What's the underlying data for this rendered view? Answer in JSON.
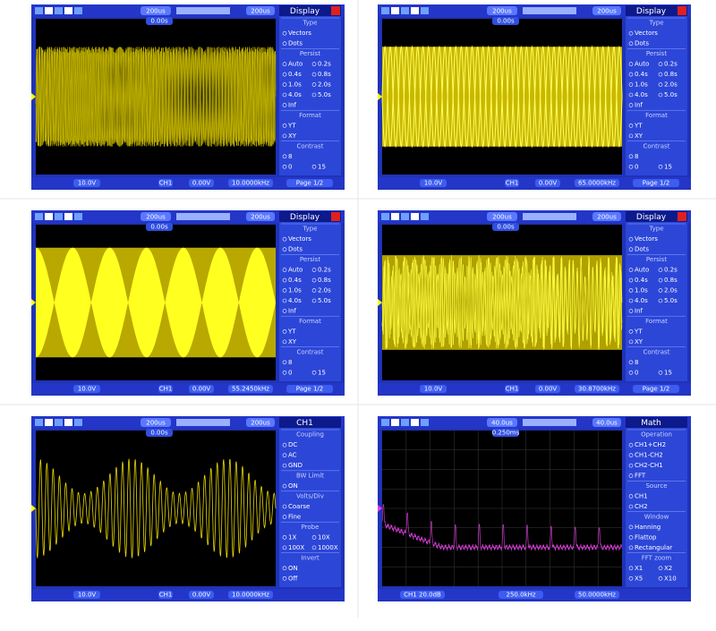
{
  "panels": [
    {
      "top": [
        "200us",
        "0.00s",
        "200us"
      ],
      "menu": {
        "title": "Display",
        "sections": [
          {
            "heading": "Type",
            "options": [
              [
                "Vectors"
              ],
              [
                "Dots"
              ]
            ]
          },
          {
            "heading": "Persist",
            "options": [
              [
                "Auto",
                "0.2s"
              ],
              [
                "0.4s",
                "0.8s"
              ],
              [
                "1.0s",
                "2.0s"
              ],
              [
                "4.0s",
                "5.0s"
              ],
              [
                "Inf"
              ]
            ]
          },
          {
            "heading": "Format",
            "options": [
              [
                "YT"
              ],
              [
                "XY"
              ]
            ]
          },
          {
            "heading": "Contrast",
            "options": [
              [
                "8"
              ],
              [
                "0",
                "15"
              ]
            ]
          }
        ],
        "page": "Page 1/2"
      },
      "bottom": [
        "10.0V",
        "CH1",
        "0.00V",
        "10.0000kHz"
      ]
    },
    {
      "top": [
        "200us",
        "0.00s",
        "200us"
      ],
      "menu": {
        "title": "Display",
        "sections": [
          {
            "heading": "Type",
            "options": [
              [
                "Vectors"
              ],
              [
                "Dots"
              ]
            ]
          },
          {
            "heading": "Persist",
            "options": [
              [
                "Auto",
                "0.2s"
              ],
              [
                "0.4s",
                "0.8s"
              ],
              [
                "1.0s",
                "2.0s"
              ],
              [
                "4.0s",
                "5.0s"
              ],
              [
                "Inf"
              ]
            ]
          },
          {
            "heading": "Format",
            "options": [
              [
                "YT"
              ],
              [
                "XY"
              ]
            ]
          },
          {
            "heading": "Contrast",
            "options": [
              [
                "8"
              ],
              [
                "0",
                "15"
              ]
            ]
          }
        ],
        "page": "Page 1/2"
      },
      "bottom": [
        "10.0V",
        "CH1",
        "0.00V",
        "65.0000kHz"
      ]
    },
    {
      "top": [
        "200us",
        "0.00s",
        "200us"
      ],
      "menu": {
        "title": "Display",
        "sections": [
          {
            "heading": "Type",
            "options": [
              [
                "Vectors"
              ],
              [
                "Dots"
              ]
            ]
          },
          {
            "heading": "Persist",
            "options": [
              [
                "Auto",
                "0.2s"
              ],
              [
                "0.4s",
                "0.8s"
              ],
              [
                "1.0s",
                "2.0s"
              ],
              [
                "4.0s",
                "5.0s"
              ],
              [
                "Inf"
              ]
            ]
          },
          {
            "heading": "Format",
            "options": [
              [
                "YT"
              ],
              [
                "XY"
              ]
            ]
          },
          {
            "heading": "Contrast",
            "options": [
              [
                "8"
              ],
              [
                "0",
                "15"
              ]
            ]
          }
        ],
        "page": "Page 1/2"
      },
      "bottom": [
        "10.0V",
        "CH1",
        "0.00V",
        "55.2450kHz"
      ]
    },
    {
      "top": [
        "200us",
        "0.00s",
        "200us"
      ],
      "menu": {
        "title": "Display",
        "sections": [
          {
            "heading": "Type",
            "options": [
              [
                "Vectors"
              ],
              [
                "Dots"
              ]
            ]
          },
          {
            "heading": "Persist",
            "options": [
              [
                "Auto",
                "0.2s"
              ],
              [
                "0.4s",
                "0.8s"
              ],
              [
                "1.0s",
                "2.0s"
              ],
              [
                "4.0s",
                "5.0s"
              ],
              [
                "Inf"
              ]
            ]
          },
          {
            "heading": "Format",
            "options": [
              [
                "YT"
              ],
              [
                "XY"
              ]
            ]
          },
          {
            "heading": "Contrast",
            "options": [
              [
                "8"
              ],
              [
                "0",
                "15"
              ]
            ]
          }
        ],
        "page": "Page 1/2"
      },
      "bottom": [
        "10.0V",
        "CH1",
        "0.00V",
        "30.8700kHz"
      ]
    },
    {
      "top": [
        "200us",
        "0.00s",
        "200us"
      ],
      "menu": {
        "title": "CH1",
        "sections": [
          {
            "heading": "Coupling",
            "options": [
              [
                "DC"
              ],
              [
                "AC"
              ],
              [
                "GND"
              ]
            ]
          },
          {
            "heading": "BW Limit",
            "options": [
              [
                "ON"
              ]
            ]
          },
          {
            "heading": "Volts/Div",
            "options": [
              [
                "Coarse"
              ],
              [
                "Fine"
              ]
            ]
          },
          {
            "heading": "Probe",
            "options": [
              [
                "1X",
                "10X"
              ],
              [
                "100X",
                "1000X"
              ]
            ]
          },
          {
            "heading": "Invert",
            "options": [
              [
                "ON"
              ],
              [
                "Off"
              ]
            ]
          }
        ]
      },
      "bottom": [
        "10.0V",
        "CH1",
        "0.00V",
        "10.0000kHz"
      ]
    },
    {
      "top": [
        "40.0us",
        "0.250ms",
        "40.0us"
      ],
      "menu": {
        "title": "Math",
        "sections": [
          {
            "heading": "Operation",
            "options": [
              [
                "CH1+CH2"
              ],
              [
                "CH1-CH2"
              ],
              [
                "CH2-CH1"
              ],
              [
                "FFT"
              ]
            ]
          },
          {
            "heading": "Source",
            "options": [
              [
                "CH1"
              ],
              [
                "CH2"
              ]
            ]
          },
          {
            "heading": "Window",
            "options": [
              [
                "Hanning"
              ],
              [
                "Flattop"
              ],
              [
                "Rectangular"
              ]
            ]
          },
          {
            "heading": "FFT zoom",
            "options": [
              [
                "X1",
                "X2"
              ],
              [
                "X5",
                "X10"
              ]
            ]
          }
        ]
      },
      "bottom": [
        "CH1 20.0dB",
        "250.0kHz",
        "50.0000kHz"
      ]
    }
  ]
}
